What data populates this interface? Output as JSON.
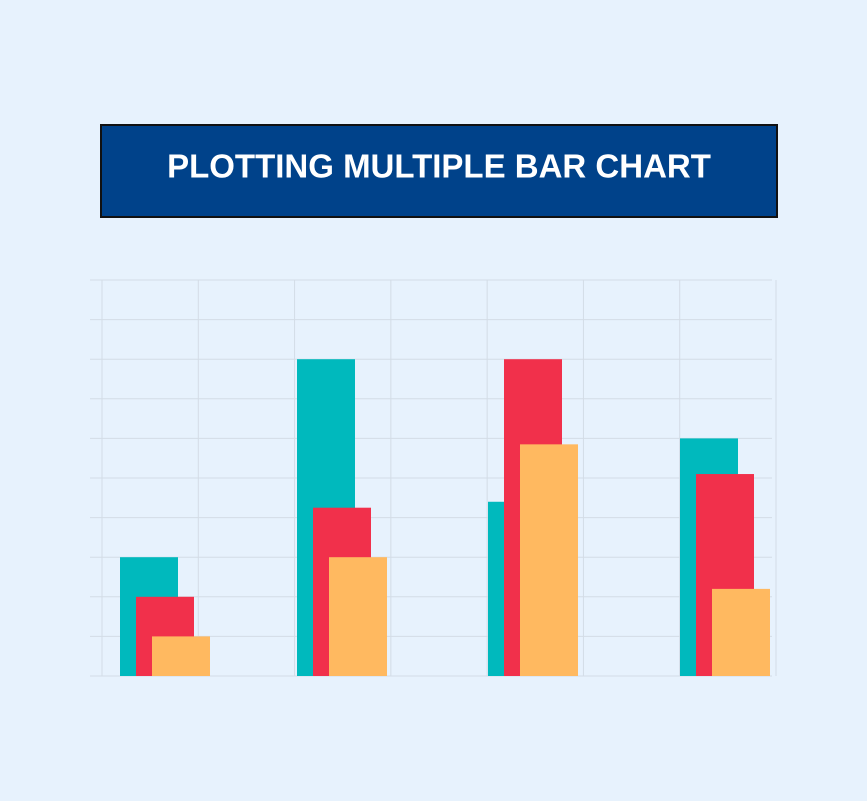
{
  "chart_data": {
    "type": "bar",
    "title": "PLOTTING MULTIPLE BAR CHART",
    "categories": [
      null,
      null,
      null,
      null
    ],
    "series": [
      {
        "color": "#00b9bd",
        "values": [
          3,
          8,
          4.4,
          6
        ]
      },
      {
        "color": "#f1304b",
        "values": [
          2,
          4.25,
          8,
          5.1
        ]
      },
      {
        "color": "#ffb960",
        "values": [
          1,
          3,
          5.85,
          2.2
        ]
      }
    ],
    "ylim": [
      0,
      10
    ],
    "yticks": [
      0,
      1,
      2,
      3,
      4,
      5,
      6,
      7,
      8,
      9,
      10
    ],
    "grid": true
  }
}
